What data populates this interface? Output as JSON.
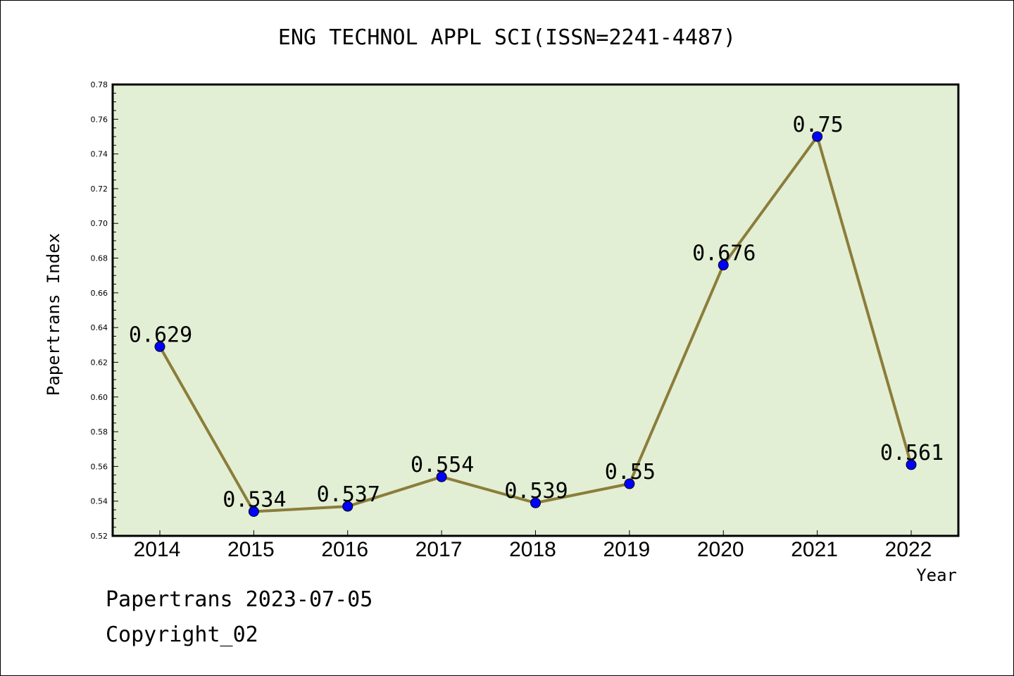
{
  "chart_data": {
    "type": "line",
    "title": "ENG TECHNOL APPL SCI(ISSN=2241-4487)",
    "xlabel": "Year",
    "ylabel": "Papertrans Index",
    "categories": [
      "2014",
      "2015",
      "2016",
      "2017",
      "2018",
      "2019",
      "2020",
      "2021",
      "2022"
    ],
    "series": [
      {
        "values": [
          0.629,
          0.534,
          0.537,
          0.554,
          0.539,
          0.55,
          0.676,
          0.75,
          0.561
        ],
        "labels": [
          "0.629",
          "0.534",
          "0.537",
          "0.554",
          "0.539",
          "0.55",
          "0.676",
          "0.75",
          "0.561"
        ]
      }
    ],
    "ylim": [
      0.52,
      0.78
    ],
    "yticks": [
      "0.52",
      "0.54",
      "0.56",
      "0.58",
      "0.60",
      "0.62",
      "0.64",
      "0.66",
      "0.68",
      "0.70",
      "0.72",
      "0.74",
      "0.76",
      "0.78"
    ],
    "grid": false,
    "legend": "none",
    "colors": {
      "plot_background": "#e2efd4",
      "line": "#8b7d3a",
      "marker": "#0000ff"
    }
  },
  "footer": {
    "line1": "Papertrans 2023-07-05",
    "line2": "Copyright_02"
  }
}
